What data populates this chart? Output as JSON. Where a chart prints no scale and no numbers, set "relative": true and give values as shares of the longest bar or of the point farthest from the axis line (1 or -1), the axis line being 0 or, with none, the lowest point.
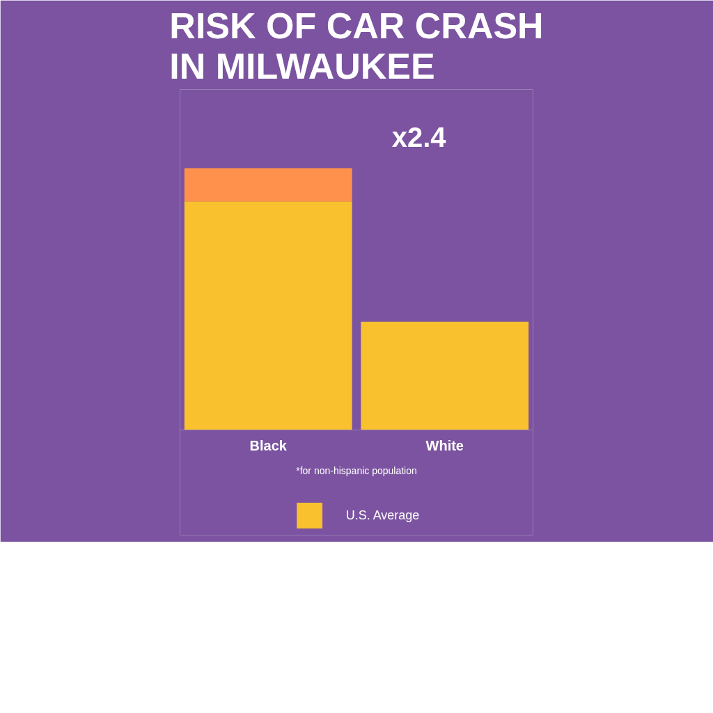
{
  "chart_data": {
    "type": "bar",
    "title": "RISK OF CAR CRASH\nIN MILWAUKEE",
    "categories": [
      "Black",
      "White"
    ],
    "stacked": true,
    "relative": true,
    "legend": "bottom",
    "series": [
      {
        "name": "U.S. Average",
        "color": "#f8c12d",
        "values": [
          0.873,
          0.414
        ]
      },
      {
        "color": "#ff914d",
        "values": [
          0.127,
          null
        ]
      }
    ],
    "annotations": [
      "x2.4",
      "*for non-hispanic population"
    ]
  }
}
